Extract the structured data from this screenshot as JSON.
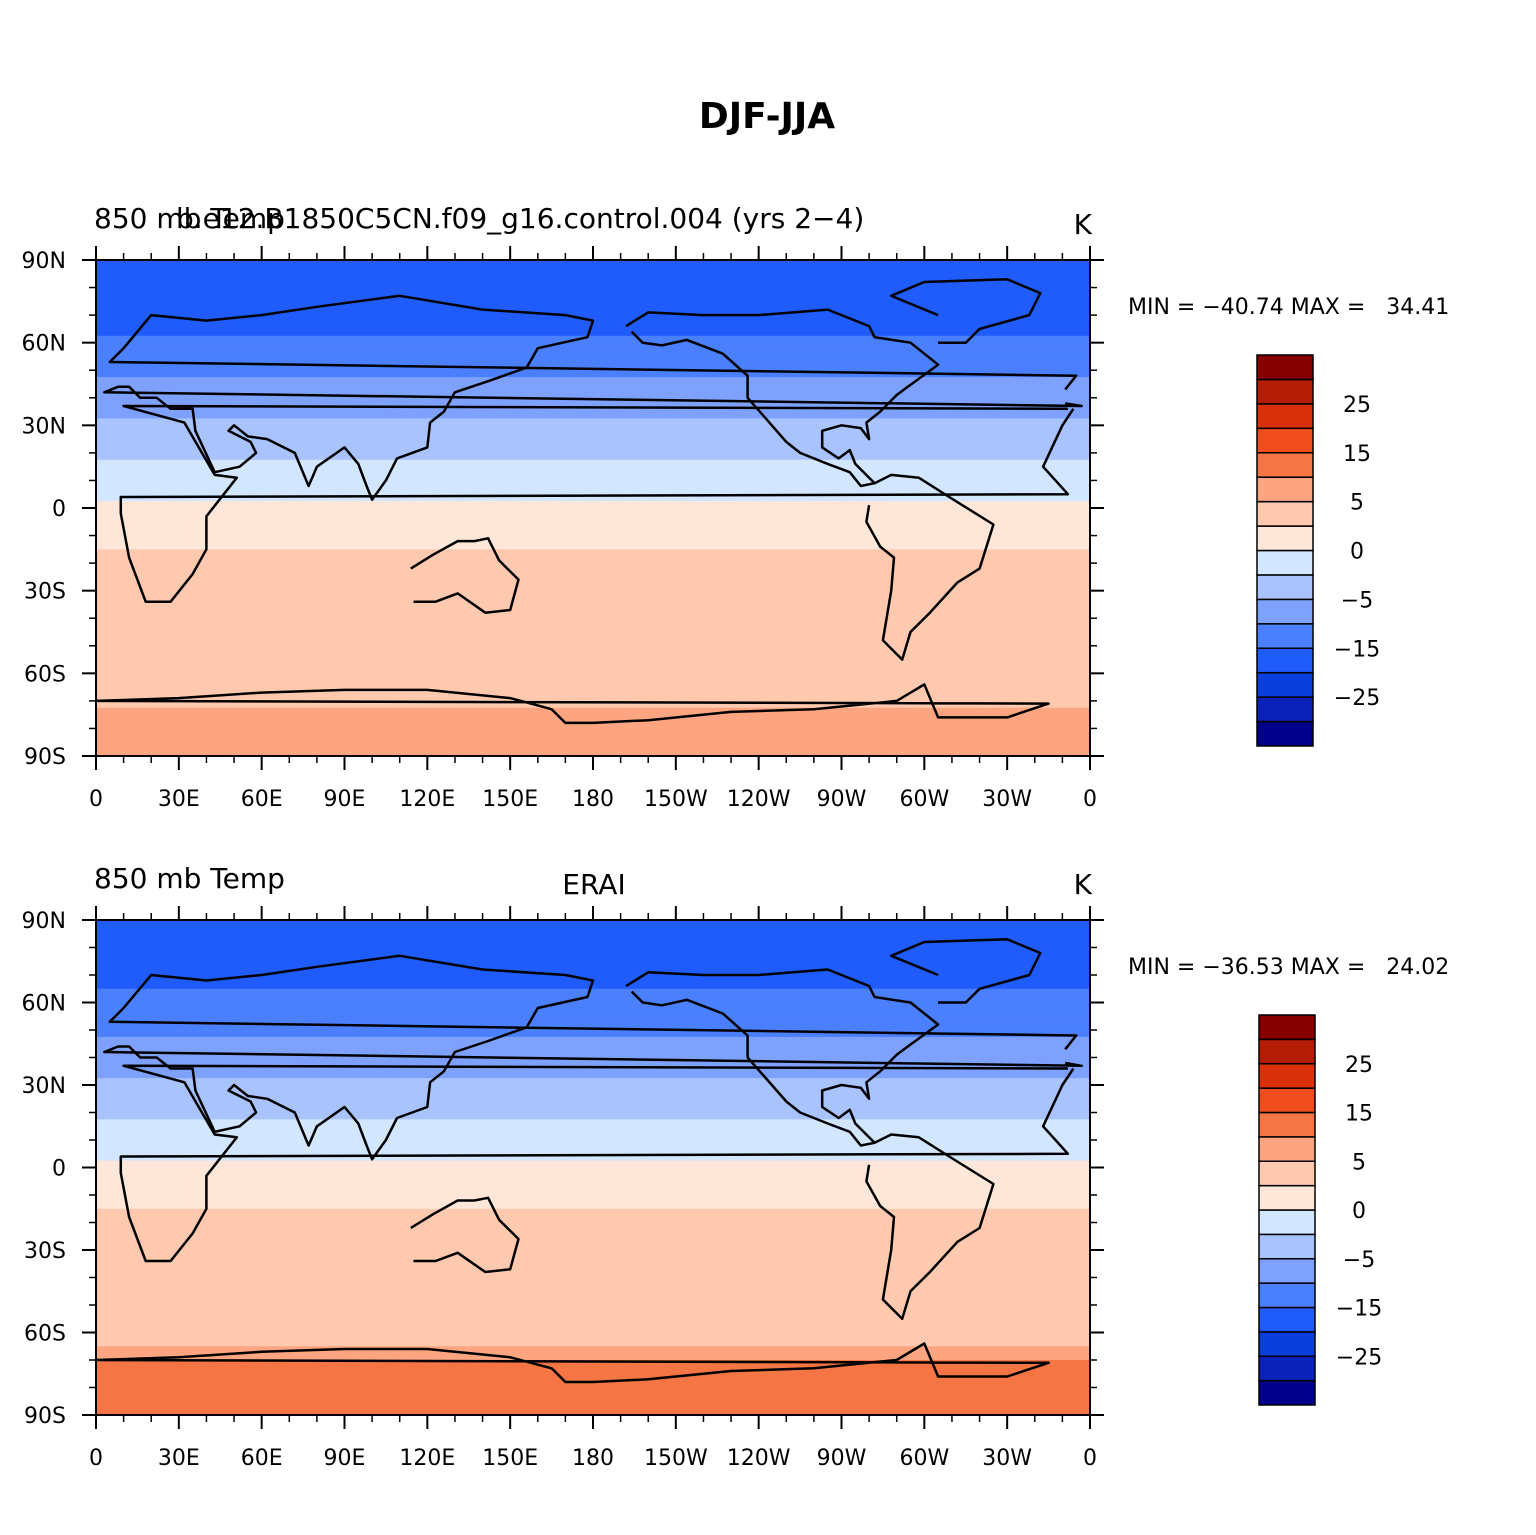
{
  "title": "DJF-JJA",
  "colorbar": {
    "colors": [
      "#00008a",
      "#0a22b8",
      "#0b3fdd",
      "#1f5cfb",
      "#4a7ffd",
      "#7ea1fd",
      "#a8c3fd",
      "#d3e6ff",
      "#fee7d8",
      "#fec9ae",
      "#fca580",
      "#f67544",
      "#ef4d1d",
      "#d9300a",
      "#b51c05",
      "#870000"
    ],
    "tick_labels": [
      "25",
      "15",
      "5",
      "0",
      "−5",
      "−15",
      "−25"
    ]
  },
  "panels": [
    {
      "left_title": "850 mb Temp",
      "center_title": "b.e12.B1850C5CN.f09_g16.control.004 (yrs 2−4)",
      "units": "K",
      "stats": "MIN = −40.74 MAX =   34.41"
    },
    {
      "left_title": "850 mb Temp",
      "center_title": "ERAI",
      "units": "K",
      "stats": "MIN = −36.53 MAX =   24.02"
    }
  ],
  "chart_data": [
    {
      "type": "heatmap",
      "title": "850 mb Temp",
      "subtitle": "b.e12.B1850C5CN.f09_g16.control.004 (yrs 2−4)",
      "units": "K",
      "x_ticks": [
        "0",
        "30E",
        "60E",
        "90E",
        "120E",
        "150E",
        "180",
        "150W",
        "120W",
        "90W",
        "60W",
        "30W",
        "0"
      ],
      "y_ticks": [
        "90N",
        "60N",
        "30N",
        "0",
        "30S",
        "60S",
        "90S"
      ],
      "xlim": [
        0,
        360
      ],
      "ylim": [
        -90,
        90
      ],
      "min": -40.74,
      "max": 34.41,
      "zonal_profile": {
        "lat": [
          90,
          75,
          60,
          45,
          30,
          15,
          0,
          -15,
          -30,
          -45,
          -60,
          -75
        ],
        "value": [
          -24,
          -24,
          -19,
          -14,
          -9,
          -4,
          1,
          5,
          9,
          7,
          6,
          11
        ]
      }
    },
    {
      "type": "heatmap",
      "title": "850 mb Temp",
      "subtitle": "ERAI",
      "units": "K",
      "x_ticks": [
        "0",
        "30E",
        "60E",
        "90E",
        "120E",
        "150E",
        "180",
        "150W",
        "120W",
        "90W",
        "60W",
        "30W",
        "0"
      ],
      "y_ticks": [
        "90N",
        "60N",
        "30N",
        "0",
        "30S",
        "60S",
        "90S"
      ],
      "xlim": [
        0,
        360
      ],
      "ylim": [
        -90,
        90
      ],
      "min": -36.53,
      "max": 24.02,
      "zonal_profile": {
        "lat": [
          90,
          75,
          60,
          45,
          30,
          15,
          0,
          -15,
          -30,
          -45,
          -60,
          -75
        ],
        "value": [
          -20,
          -22,
          -19,
          -14,
          -9,
          -4,
          1,
          5,
          9,
          7,
          6,
          19
        ]
      }
    }
  ]
}
